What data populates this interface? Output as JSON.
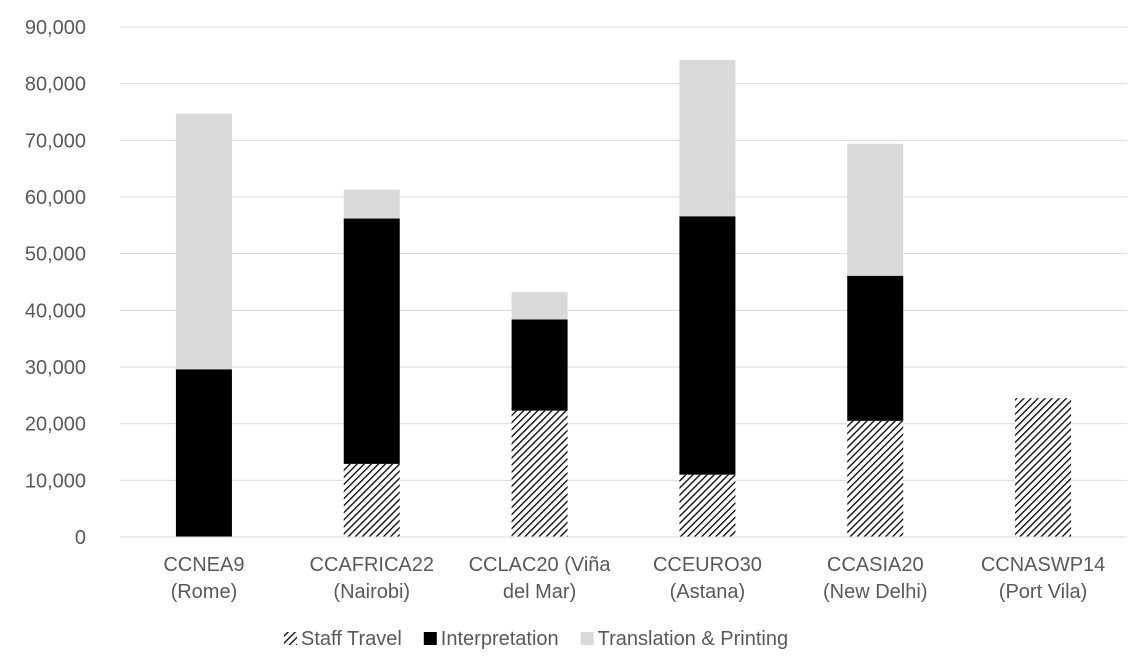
{
  "chart_data": {
    "type": "bar",
    "stacked": true,
    "title": "",
    "xlabel": "",
    "ylabel": "",
    "ylim": [
      0,
      90000
    ],
    "y_ticks": [
      "0",
      "10,000",
      "20,000",
      "30,000",
      "40,000",
      "50,000",
      "60,000",
      "70,000",
      "80,000",
      "90,000"
    ],
    "grid": true,
    "legend_position": "bottom",
    "categories": [
      [
        "CCNEA9",
        "(Rome)"
      ],
      [
        "CCAFRICA22",
        "(Nairobi)"
      ],
      [
        "CCLAC20 (Viña",
        "del Mar)"
      ],
      [
        "CCEURO30",
        "(Astana)"
      ],
      [
        "CCASIA20",
        "(New Delhi)"
      ],
      [
        "CCNASWP14",
        "(Port Vila)"
      ]
    ],
    "series": [
      {
        "name": "Staff Travel",
        "pattern": "hatch",
        "color": "#000000",
        "values": [
          0,
          12900,
          22300,
          11000,
          20500,
          24500
        ]
      },
      {
        "name": "Interpretation",
        "pattern": "solid",
        "color": "#000000",
        "values": [
          29600,
          43300,
          16100,
          45600,
          25600,
          0
        ]
      },
      {
        "name": "Translation & Printing",
        "pattern": "solid",
        "color": "#d9d9d9",
        "values": [
          45100,
          5100,
          4800,
          27600,
          23300,
          0
        ]
      }
    ]
  }
}
